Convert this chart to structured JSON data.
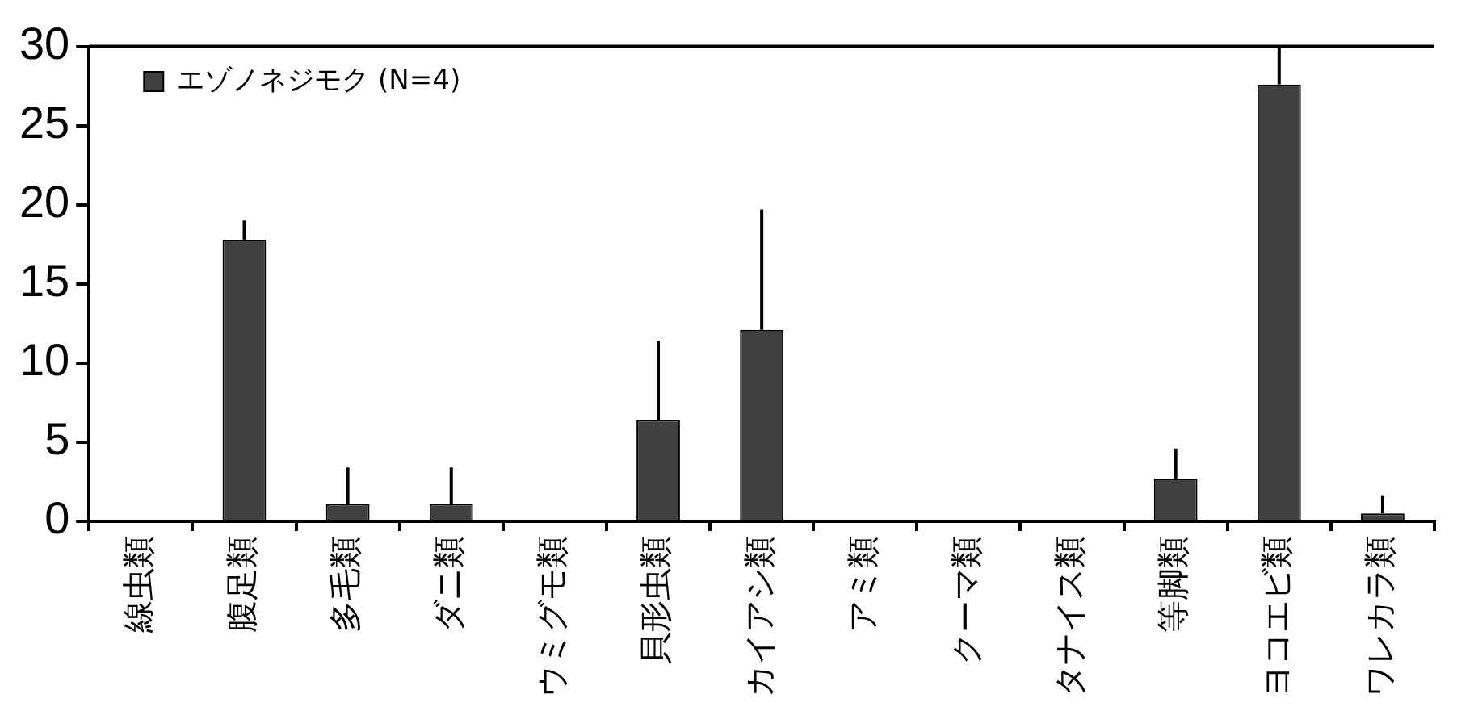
{
  "chart_data": {
    "type": "bar",
    "categories": [
      "線虫類",
      "腹足類",
      "多毛類",
      "ダニ類",
      "ウミグモ類",
      "貝形虫類",
      "カイアシ類",
      "アミ類",
      "クーマ類",
      "タナイス類",
      "等脚類",
      "ヨコエビ類",
      "ワレカラ類"
    ],
    "series": [
      {
        "name": "エゾノネジモク (N=4)",
        "color": "#404040",
        "values": [
          0,
          17.8,
          1.1,
          1.1,
          0,
          6.4,
          12.1,
          0,
          0,
          0,
          2.7,
          27.6,
          0.5
        ],
        "errors": [
          null,
          [
            17.8,
            19.0
          ],
          [
            1.1,
            3.4
          ],
          [
            1.1,
            3.4
          ],
          null,
          [
            6.4,
            11.4
          ],
          [
            12.1,
            19.7
          ],
          null,
          null,
          null,
          [
            2.7,
            4.6
          ],
          [
            27.6,
            30
          ],
          [
            0.5,
            1.6
          ]
        ]
      }
    ],
    "ylim": [
      0,
      30
    ],
    "yticks": [
      0,
      5,
      10,
      15,
      20,
      25,
      30
    ],
    "grid": false,
    "legend": "top left"
  }
}
